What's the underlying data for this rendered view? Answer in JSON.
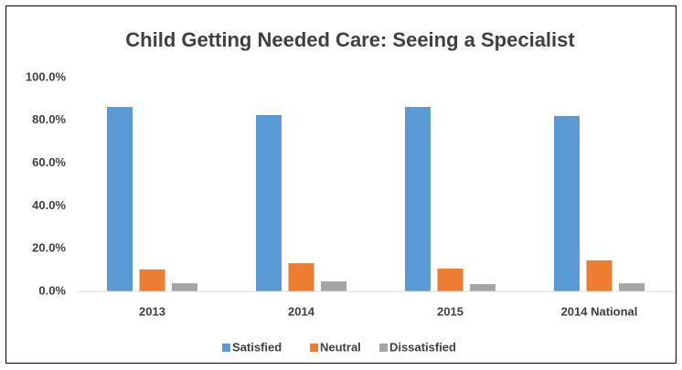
{
  "chart_data": {
    "type": "bar",
    "title": "Child Getting Needed Care: Seeing a Specialist",
    "categories": [
      "2013",
      "2014",
      "2015",
      "2014 National"
    ],
    "series": [
      {
        "name": "Satisfied",
        "color": "#5b9bd5",
        "values": [
          86.3,
          82.5,
          86.3,
          82.1
        ]
      },
      {
        "name": "Neutral",
        "color": "#ed7d31",
        "values": [
          10.3,
          13.2,
          10.7,
          14.5
        ]
      },
      {
        "name": "Dissatisfied",
        "color": "#a5a5a5",
        "values": [
          3.8,
          4.7,
          3.4,
          3.8
        ]
      }
    ],
    "ylim": [
      0,
      100
    ],
    "yticks": [
      {
        "value": 0,
        "label": "0.0%"
      },
      {
        "value": 20,
        "label": "20.0%"
      },
      {
        "value": 40,
        "label": "40.0%"
      },
      {
        "value": 60,
        "label": "60.0%"
      },
      {
        "value": 80,
        "label": "80.0%"
      },
      {
        "value": 100,
        "label": "100.0%"
      }
    ],
    "grid": false,
    "legend": "bottom"
  }
}
